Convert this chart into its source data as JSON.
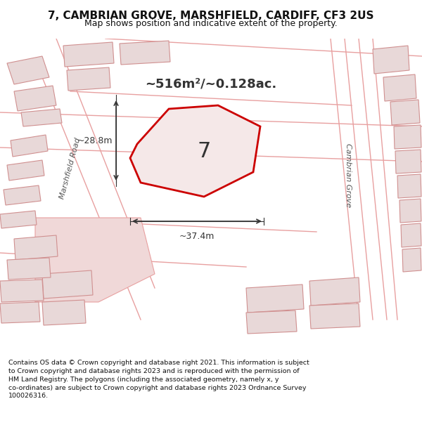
{
  "title": "7, CAMBRIAN GROVE, MARSHFIELD, CARDIFF, CF3 2US",
  "subtitle": "Map shows position and indicative extent of the property.",
  "area_text": "~516m²/~0.128ac.",
  "plot_number": "7",
  "dim_width": "~37.4m",
  "dim_height": "~28.8m",
  "road_label_left": "Marshfield Road",
  "road_label_right": "Cambrian Grove",
  "copyright_text": "Contains OS data © Crown copyright and database right 2021. This information is subject to Crown copyright and database rights 2023 and is reproduced with the permission of HM Land Registry. The polygons (including the associated geometry, namely x, y co-ordinates) are subject to Crown copyright and database rights 2023 Ordnance Survey 100026316.",
  "bg_color": "#f5f0f0",
  "map_bg": "#f5f0f0",
  "plot_fill": "#f5e8e8",
  "plot_edge": "#cc0000",
  "road_line_color": "#e8a0a0",
  "building_fill": "#e8d8d8",
  "building_edge": "#d09090",
  "dim_color": "#333333",
  "text_color": "#111111",
  "figsize": [
    6.0,
    6.25
  ],
  "dpi": 100
}
